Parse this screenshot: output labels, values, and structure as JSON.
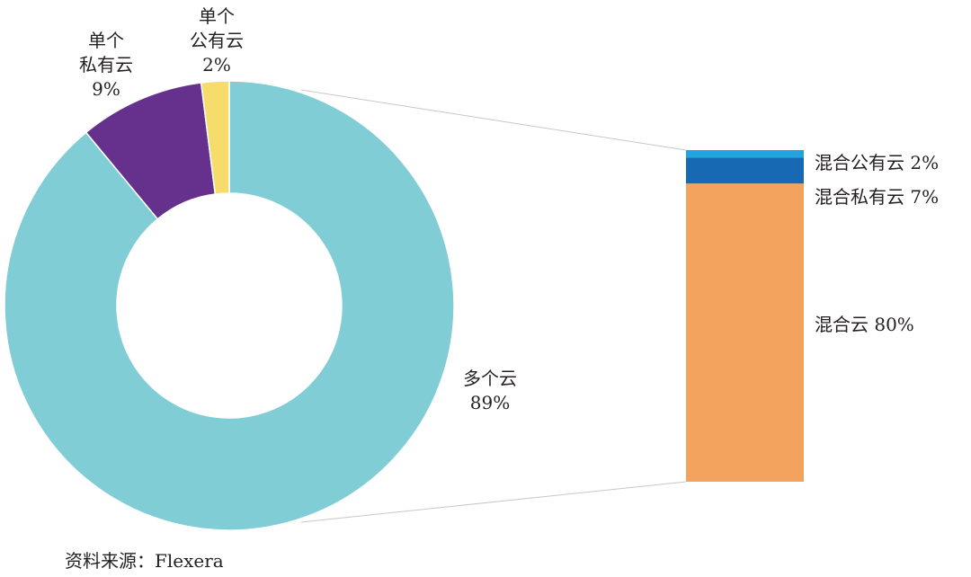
{
  "chart_data": {
    "type": "pie",
    "donut": {
      "slices": [
        {
          "id": "multi",
          "label_lines": [
            "多个云"
          ],
          "value_label": "89%",
          "value": 89,
          "color": "#80cdd6"
        },
        {
          "id": "single-private",
          "label_lines": [
            "单个",
            "私有云"
          ],
          "value_label": "9%",
          "value": 9,
          "color": "#66318c"
        },
        {
          "id": "single-public",
          "label_lines": [
            "单个",
            "公有云"
          ],
          "value_label": "2%",
          "value": 2,
          "color": "#f5dc6b"
        }
      ]
    },
    "breakdown": {
      "of_slice": "multi",
      "type": "stacked-bar",
      "segments": [
        {
          "id": "hybrid-public",
          "label": "混合公有云 2%",
          "value": 2,
          "color": "#22a5de"
        },
        {
          "id": "hybrid-private",
          "label": "混合私有云 7%",
          "value": 7,
          "color": "#1869b3"
        },
        {
          "id": "hybrid",
          "label": "混合云 80%",
          "value": 80,
          "color": "#f4a35f"
        }
      ]
    },
    "source": "资料来源：Flexera"
  }
}
